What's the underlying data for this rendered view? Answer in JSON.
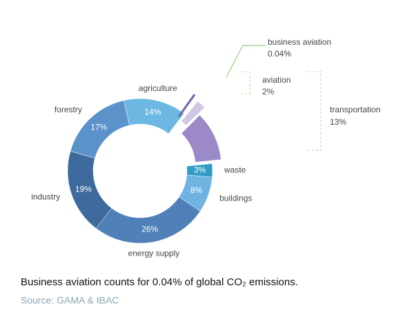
{
  "chart_data": {
    "type": "donut",
    "categories": [
      "agriculture",
      "transportation",
      "waste",
      "buildings",
      "energy supply",
      "industry",
      "forestry"
    ],
    "values": [
      14,
      13,
      3,
      8,
      26,
      19,
      17
    ],
    "value_labels": [
      "14%",
      "13%",
      "3%",
      "8%",
      "26%",
      "19%",
      "17%"
    ],
    "colors": [
      "#6cb8e2",
      "#9c8ac8",
      "#2f9cc4",
      "#6fb3e3",
      "#4f80b8",
      "#3e6a9e",
      "#5b92ca"
    ],
    "subsegments": [
      {
        "name": "aviation",
        "value": 2,
        "value_label": "2%",
        "color": "#d0c6e6"
      },
      {
        "name": "business aviation",
        "value": 0.04,
        "value_label": "0.04%",
        "color": "#7a67b2"
      }
    ],
    "caption": "Business aviation counts for 0.04% of global CO₂ emissions.",
    "source": "Source: GAMA & IBAC"
  }
}
